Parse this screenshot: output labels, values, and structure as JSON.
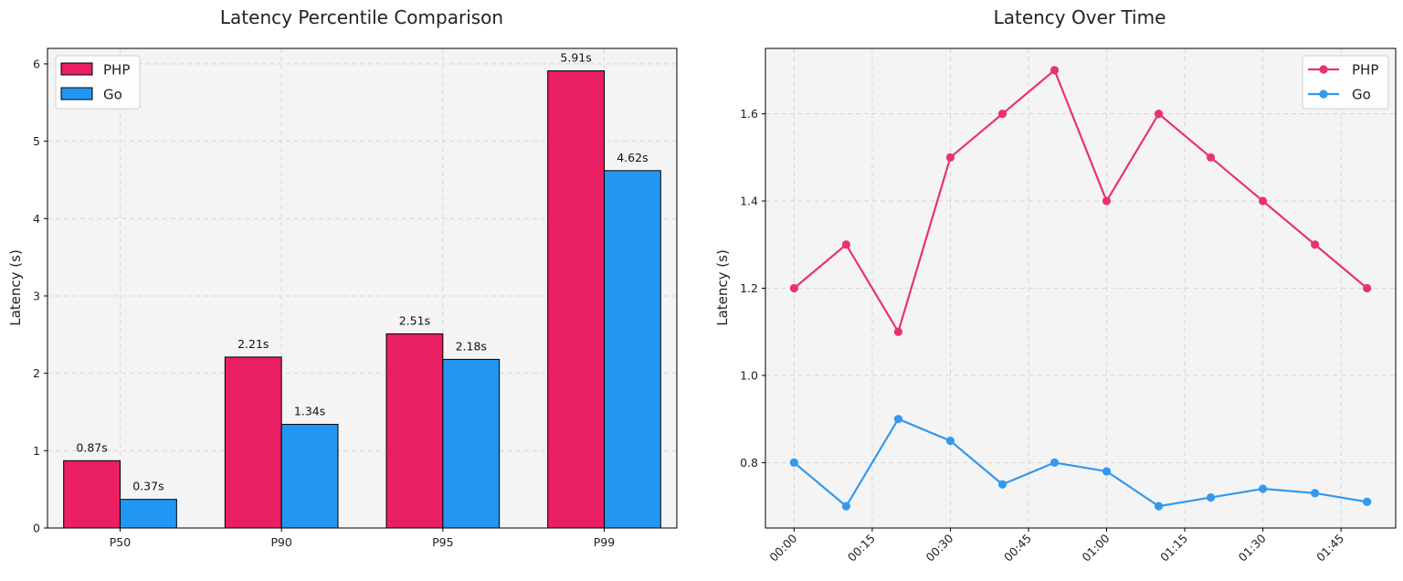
{
  "colors": {
    "php": "#e91e63",
    "go": "#2196f3",
    "background": "#f4f4f4"
  },
  "chart_data": [
    {
      "type": "bar",
      "title": "Latency Percentile Comparison",
      "xlabel": "",
      "ylabel": "Latency (s)",
      "categories": [
        "P50",
        "P90",
        "P95",
        "P99"
      ],
      "series": [
        {
          "name": "PHP",
          "values": [
            0.87,
            2.21,
            2.51,
            5.91
          ],
          "labels": [
            "0.87s",
            "2.21s",
            "2.51s",
            "5.91s"
          ]
        },
        {
          "name": "Go",
          "values": [
            0.37,
            1.34,
            2.18,
            4.62
          ],
          "labels": [
            "0.37s",
            "1.34s",
            "2.18s",
            "4.62s"
          ]
        }
      ],
      "ylim": [
        0,
        6.2
      ],
      "yticks": [
        0,
        1,
        2,
        3,
        4,
        5,
        6
      ],
      "ytick_labels": [
        "0",
        "1",
        "2",
        "3",
        "4",
        "5",
        "6"
      ],
      "grid": true,
      "legend": "top-left"
    },
    {
      "type": "line",
      "title": "Latency Over Time",
      "xlabel": "",
      "ylabel": "Latency (s)",
      "x": [
        "00:00",
        "00:10",
        "00:20",
        "00:30",
        "00:40",
        "00:50",
        "01:00",
        "01:10",
        "01:20",
        "01:30",
        "01:40",
        "01:50"
      ],
      "xticks": [
        "00:00",
        "00:15",
        "00:30",
        "00:45",
        "01:00",
        "01:15",
        "01:30",
        "01:45"
      ],
      "series": [
        {
          "name": "PHP",
          "values": [
            1.2,
            1.3,
            1.1,
            1.5,
            1.6,
            1.7,
            1.4,
            1.6,
            1.5,
            1.4,
            1.3,
            1.2
          ]
        },
        {
          "name": "Go",
          "values": [
            0.8,
            0.7,
            0.9,
            0.85,
            0.75,
            0.8,
            0.78,
            0.7,
            0.72,
            0.74,
            0.73,
            0.71
          ]
        }
      ],
      "ylim": [
        0.65,
        1.75
      ],
      "yticks": [
        0.8,
        1.0,
        1.2,
        1.4,
        1.6
      ],
      "ytick_labels": [
        "0.8",
        "1.0",
        "1.2",
        "1.4",
        "1.6"
      ],
      "grid": true,
      "legend": "top-right"
    }
  ]
}
